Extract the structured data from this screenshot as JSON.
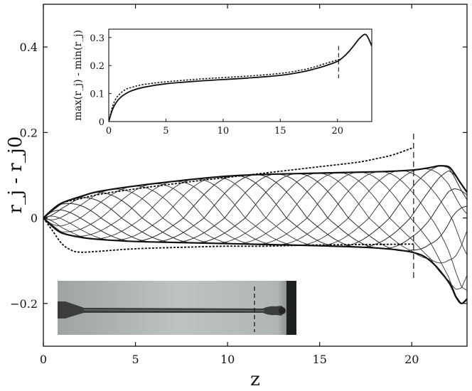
{
  "chart_data": [
    {
      "type": "line",
      "xlabel": "z",
      "ylabel": "r_j - r_j0",
      "xlim": [
        0,
        23
      ],
      "ylim": [
        -0.3,
        0.5
      ],
      "xticks": [
        0,
        5,
        10,
        15,
        20
      ],
      "yticks": [
        0.4,
        0.2,
        0,
        -0.2
      ],
      "ytick_labels": [
        "0.4",
        "0.2",
        "0",
        "−0.2"
      ],
      "grid": false,
      "legend": "none",
      "vertical_marker_x": 20.1,
      "series": [
        {
          "style": "solid-thick",
          "role": "upper-envelope",
          "x": [
            0,
            0.5,
            1,
            2,
            3,
            5,
            8,
            10,
            12,
            15,
            18,
            20,
            21,
            21.5,
            22,
            22.3,
            22.6,
            23
          ],
          "y": [
            0,
            0.02,
            0.035,
            0.05,
            0.062,
            0.075,
            0.09,
            0.098,
            0.102,
            0.105,
            0.108,
            0.112,
            0.118,
            0.122,
            0.12,
            0.105,
            0.085,
            0.06
          ]
        },
        {
          "style": "solid-thick",
          "role": "lower-envelope",
          "x": [
            0,
            0.5,
            1,
            2,
            3,
            5,
            8,
            10,
            12,
            15,
            18,
            20,
            21,
            22,
            22.4,
            22.7,
            23
          ],
          "y": [
            0,
            -0.02,
            -0.035,
            -0.045,
            -0.05,
            -0.055,
            -0.058,
            -0.06,
            -0.062,
            -0.065,
            -0.07,
            -0.08,
            -0.1,
            -0.15,
            -0.185,
            -0.2,
            -0.19
          ]
        },
        {
          "style": "dotted",
          "role": "upper-bound",
          "x": [
            0,
            0.5,
            1,
            2,
            3,
            5,
            8,
            10,
            12,
            15,
            17,
            18,
            19,
            20.1
          ],
          "y": [
            0,
            0.02,
            0.035,
            0.045,
            0.055,
            0.068,
            0.085,
            0.095,
            0.105,
            0.12,
            0.13,
            0.138,
            0.148,
            0.165
          ]
        },
        {
          "style": "dotted",
          "role": "lower-bound",
          "x": [
            0,
            0.5,
            1,
            1.5,
            2,
            3,
            5,
            8,
            10,
            12,
            15,
            18,
            20.1
          ],
          "y": [
            0,
            -0.03,
            -0.06,
            -0.075,
            -0.08,
            -0.078,
            -0.072,
            -0.068,
            -0.066,
            -0.066,
            -0.063,
            -0.062,
            -0.061
          ]
        }
      ],
      "oscillation_curves": {
        "count": 14,
        "phase_step_wavelengths": 0.1,
        "wavelength": 11.2,
        "end_peak_z": 21.6,
        "upper_amp": [
          [
            0,
            0
          ],
          [
            0.5,
            0.02
          ],
          [
            1,
            0.035
          ],
          [
            2,
            0.05
          ],
          [
            3,
            0.062
          ],
          [
            5,
            0.075
          ],
          [
            8,
            0.09
          ],
          [
            10,
            0.098
          ],
          [
            12,
            0.102
          ],
          [
            15,
            0.105
          ],
          [
            18,
            0.108
          ],
          [
            20,
            0.112
          ],
          [
            21,
            0.118
          ],
          [
            21.5,
            0.122
          ],
          [
            22,
            0.12
          ],
          [
            22.3,
            0.105
          ],
          [
            22.6,
            0.085
          ],
          [
            23,
            0.06
          ]
        ],
        "lower_amp": [
          [
            0,
            0
          ],
          [
            0.5,
            0.02
          ],
          [
            1,
            0.035
          ],
          [
            2,
            0.045
          ],
          [
            3,
            0.05
          ],
          [
            5,
            0.055
          ],
          [
            8,
            0.058
          ],
          [
            10,
            0.06
          ],
          [
            12,
            0.062
          ],
          [
            15,
            0.065
          ],
          [
            18,
            0.07
          ],
          [
            20,
            0.08
          ],
          [
            21,
            0.1
          ],
          [
            22,
            0.15
          ],
          [
            22.4,
            0.185
          ],
          [
            22.7,
            0.2
          ],
          [
            23,
            0.19
          ]
        ]
      }
    },
    {
      "type": "line",
      "xlabel": "",
      "ylabel": "max(r_j) - min(r_j)",
      "xlim": [
        0,
        23
      ],
      "ylim": [
        0,
        0.33
      ],
      "xticks": [
        0,
        5,
        10,
        15,
        20
      ],
      "yticks": [
        0,
        0.1,
        0.2,
        0.3
      ],
      "ytick_labels": [
        "0",
        "0.1",
        "0.2",
        "0.3"
      ],
      "grid": false,
      "legend": "none",
      "vertical_marker_x": 20.1,
      "series": [
        {
          "style": "solid",
          "x": [
            0,
            0.3,
            0.6,
            1,
            1.5,
            2,
            3,
            5,
            8,
            10,
            12,
            15,
            17,
            18,
            19,
            20,
            20.5,
            21,
            21.5,
            22,
            22.5,
            23
          ],
          "y": [
            0,
            0.04,
            0.065,
            0.085,
            0.1,
            0.11,
            0.122,
            0.135,
            0.145,
            0.15,
            0.155,
            0.165,
            0.178,
            0.188,
            0.2,
            0.215,
            0.23,
            0.25,
            0.275,
            0.3,
            0.31,
            0.27
          ]
        },
        {
          "style": "dotted",
          "x": [
            0,
            0.3,
            0.6,
            1,
            1.5,
            2,
            3,
            5,
            8,
            10,
            12,
            15,
            17,
            18,
            19,
            20,
            20.3
          ],
          "y": [
            0,
            0.05,
            0.08,
            0.1,
            0.115,
            0.122,
            0.132,
            0.142,
            0.152,
            0.157,
            0.162,
            0.172,
            0.185,
            0.195,
            0.208,
            0.22,
            0.225
          ]
        }
      ]
    }
  ],
  "photo": {
    "background_color": "#b4bab6",
    "jet_color": "#3a3d3c",
    "dark_edge_color": "#202221"
  }
}
